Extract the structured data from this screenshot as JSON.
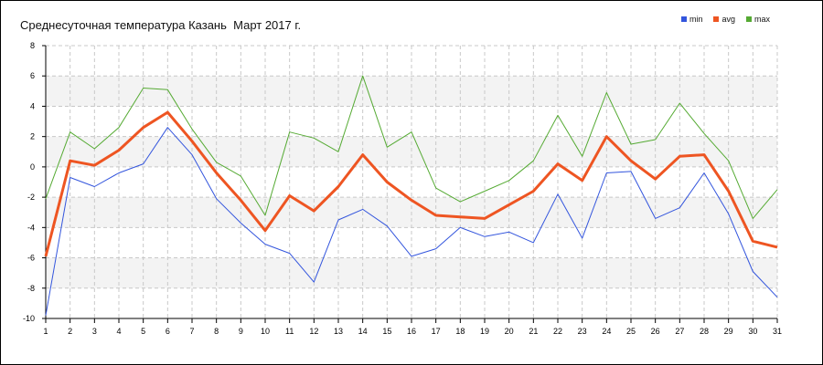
{
  "chart_data": {
    "type": "line",
    "title": "Среднесуточная температура Казань  Март 2017 г.",
    "xlabel": "",
    "ylabel": "",
    "x": [
      1,
      2,
      3,
      4,
      5,
      6,
      7,
      8,
      9,
      10,
      11,
      12,
      13,
      14,
      15,
      16,
      17,
      18,
      19,
      20,
      21,
      22,
      23,
      24,
      25,
      26,
      27,
      28,
      29,
      30,
      31
    ],
    "ylim": [
      -10,
      8
    ],
    "yticks": [
      -10,
      -8,
      -6,
      -4,
      -2,
      0,
      2,
      4,
      6,
      8
    ],
    "grid": true,
    "legend_position": "top-right",
    "series": [
      {
        "name": "min",
        "color": "#3355dd",
        "values": [
          -9.8,
          -0.7,
          -1.3,
          -0.4,
          0.2,
          2.6,
          0.8,
          -2.1,
          -3.7,
          -5.1,
          -5.7,
          -7.6,
          -3.5,
          -2.8,
          -3.9,
          -5.9,
          -5.4,
          -4.0,
          -4.6,
          -4.3,
          -5.0,
          -1.8,
          -4.7,
          -0.4,
          -0.3,
          -3.4,
          -2.7,
          -0.4,
          -3.1,
          -6.9,
          -8.6
        ]
      },
      {
        "name": "avg",
        "color": "#ee5522",
        "values": [
          -5.9,
          0.4,
          0.1,
          1.1,
          2.6,
          3.6,
          1.7,
          -0.4,
          -2.2,
          -4.2,
          -1.9,
          -2.9,
          -1.3,
          0.8,
          -1.0,
          -2.2,
          -3.2,
          -3.3,
          -3.4,
          -2.5,
          -1.6,
          0.2,
          -0.9,
          2.0,
          0.4,
          -0.8,
          0.7,
          0.8,
          -1.6,
          -4.9,
          -5.3
        ]
      },
      {
        "name": "max",
        "color": "#55aa33",
        "values": [
          -2.1,
          2.3,
          1.2,
          2.6,
          5.2,
          5.1,
          2.5,
          0.3,
          -0.6,
          -3.2,
          2.3,
          1.9,
          1.0,
          6.0,
          1.3,
          2.3,
          -1.4,
          -2.3,
          -1.6,
          -0.9,
          0.4,
          3.4,
          0.7,
          4.9,
          1.5,
          1.8,
          4.2,
          2.2,
          0.4,
          -3.4,
          -1.5
        ]
      }
    ]
  }
}
